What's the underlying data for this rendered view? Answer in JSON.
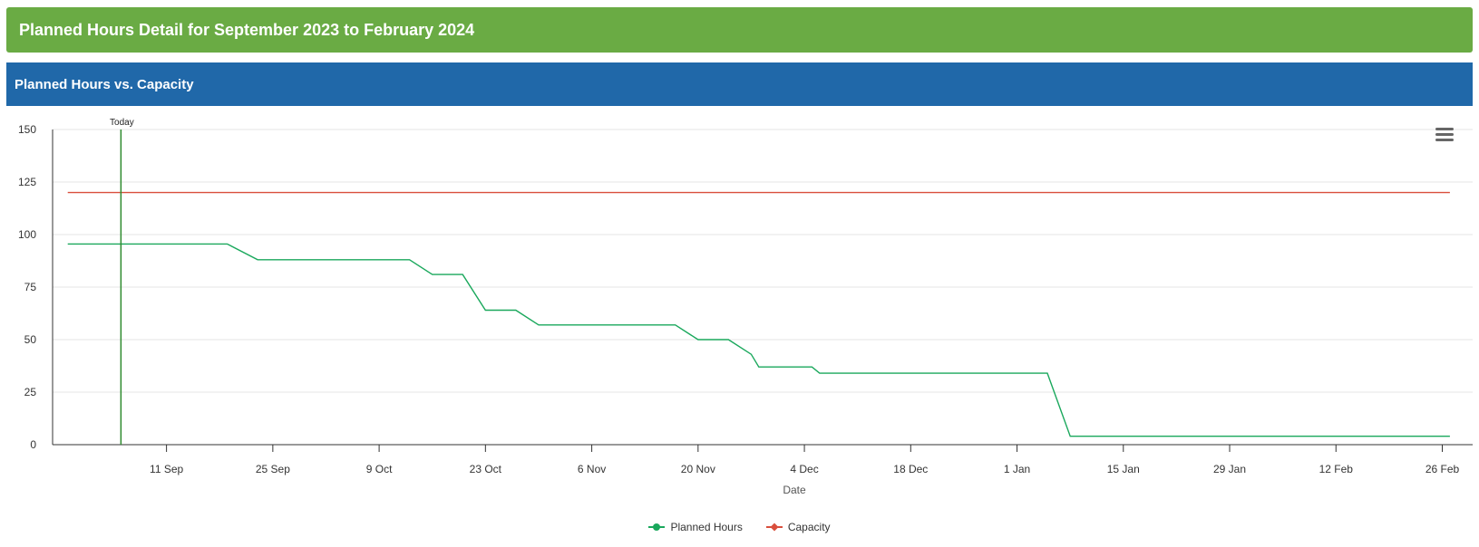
{
  "page": {
    "title": "Planned Hours Detail for September 2023 to February 2024"
  },
  "panel": {
    "title": "Planned Hours vs. Capacity"
  },
  "colors": {
    "header_green": "#6aab44",
    "panel_blue": "#2068a9",
    "planned": "#1aa85c",
    "capacity": "#d94f3d",
    "today": "#2e8b2e"
  },
  "menu": {
    "icon": "hamburger-menu-icon"
  },
  "chart_data": {
    "type": "line",
    "title": "",
    "xlabel": "Date",
    "ylabel": "",
    "xlim": [
      "2023-08-27",
      "2024-03-01"
    ],
    "ylim": [
      0,
      150
    ],
    "y_ticks": [
      0,
      25,
      50,
      75,
      100,
      125,
      150
    ],
    "x_ticks": [
      {
        "date": "2023-09-11",
        "label": "11 Sep"
      },
      {
        "date": "2023-09-25",
        "label": "25 Sep"
      },
      {
        "date": "2023-10-09",
        "label": "9 Oct"
      },
      {
        "date": "2023-10-23",
        "label": "23 Oct"
      },
      {
        "date": "2023-11-06",
        "label": "6 Nov"
      },
      {
        "date": "2023-11-20",
        "label": "20 Nov"
      },
      {
        "date": "2023-12-04",
        "label": "4 Dec"
      },
      {
        "date": "2023-12-18",
        "label": "18 Dec"
      },
      {
        "date": "2024-01-01",
        "label": "1 Jan"
      },
      {
        "date": "2024-01-15",
        "label": "15 Jan"
      },
      {
        "date": "2024-01-29",
        "label": "29 Jan"
      },
      {
        "date": "2024-02-12",
        "label": "12 Feb"
      },
      {
        "date": "2024-02-26",
        "label": "26 Feb"
      }
    ],
    "grid": true,
    "legend": "bottom-center",
    "annotations": [
      {
        "type": "vertical-line",
        "date": "2023-09-05",
        "label": "Today"
      }
    ],
    "series": [
      {
        "name": "Planned Hours",
        "color": "#1aa85c",
        "marker": "circle",
        "points": [
          {
            "x": "2023-08-29",
            "y": 95.5
          },
          {
            "x": "2023-09-19",
            "y": 95.5
          },
          {
            "x": "2023-09-23",
            "y": 88
          },
          {
            "x": "2023-10-13",
            "y": 88
          },
          {
            "x": "2023-10-16",
            "y": 81
          },
          {
            "x": "2023-10-20",
            "y": 81
          },
          {
            "x": "2023-10-23",
            "y": 64
          },
          {
            "x": "2023-10-27",
            "y": 64
          },
          {
            "x": "2023-10-30",
            "y": 57
          },
          {
            "x": "2023-11-17",
            "y": 57
          },
          {
            "x": "2023-11-20",
            "y": 50
          },
          {
            "x": "2023-11-24",
            "y": 50
          },
          {
            "x": "2023-11-27",
            "y": 43
          },
          {
            "x": "2023-11-28",
            "y": 37
          },
          {
            "x": "2023-12-05",
            "y": 37
          },
          {
            "x": "2023-12-06",
            "y": 34
          },
          {
            "x": "2024-01-05",
            "y": 34
          },
          {
            "x": "2024-01-08",
            "y": 4
          },
          {
            "x": "2024-02-27",
            "y": 4
          }
        ]
      },
      {
        "name": "Capacity",
        "color": "#d94f3d",
        "marker": "diamond",
        "points": [
          {
            "x": "2023-08-29",
            "y": 120
          },
          {
            "x": "2024-02-27",
            "y": 120
          }
        ]
      }
    ]
  }
}
